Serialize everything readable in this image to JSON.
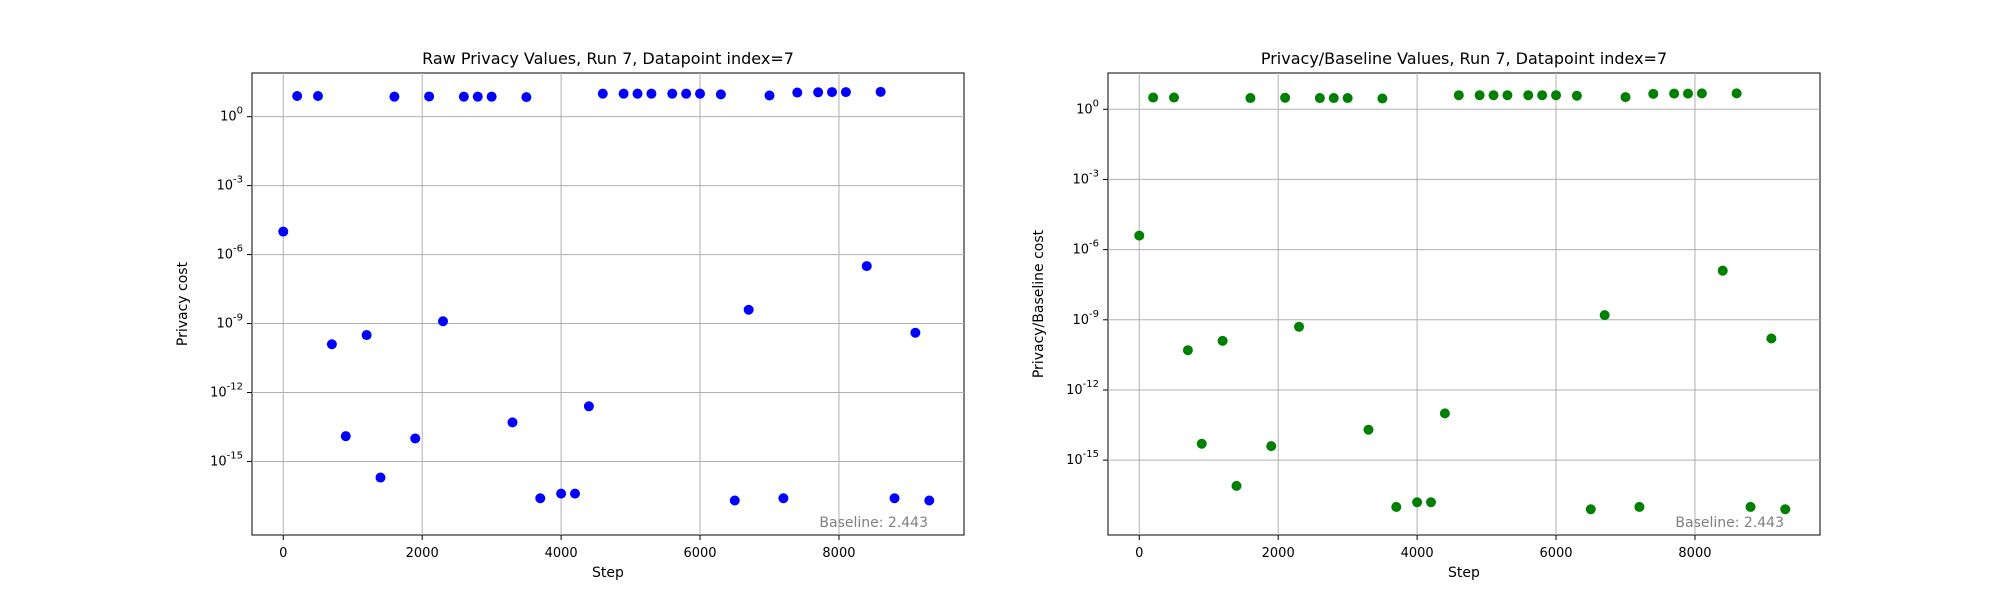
{
  "charts": [
    {
      "id": "raw",
      "color": "#0000ff",
      "chart_data": {
        "type": "scatter",
        "title": "Raw Privacy Values, Run 7, Datapoint index=7",
        "xlabel": "Step",
        "ylabel": "Privacy cost",
        "yscale": "log",
        "xlim": [
          -450,
          9800
        ],
        "ylim_log10": [
          -18.2,
          1.9
        ],
        "xticks": [
          0,
          2000,
          4000,
          6000,
          8000
        ],
        "xtick_labels": [
          "0",
          "2000",
          "4000",
          "6000",
          "8000"
        ],
        "yticks_log10": [
          0,
          -3,
          -6,
          -9,
          -12,
          -15
        ],
        "ytick_labels": [
          "10^0",
          "10^-3",
          "10^-6",
          "10^-9",
          "10^-12",
          "10^-15"
        ],
        "grid": true,
        "annotation": "Baseline: 2.443",
        "x": [
          0,
          200,
          500,
          700,
          900,
          1200,
          1400,
          1600,
          1900,
          2100,
          2300,
          2600,
          2800,
          3000,
          3300,
          3500,
          3700,
          4000,
          4200,
          4400,
          4600,
          4900,
          5100,
          5300,
          5600,
          5800,
          6000,
          6300,
          6500,
          6700,
          7000,
          7200,
          7400,
          7700,
          7900,
          8100,
          8400,
          8600,
          8800,
          9100,
          9300
        ],
        "y_log10": [
          -5.0,
          0.9,
          0.9,
          -9.9,
          -13.9,
          -9.5,
          -15.7,
          0.87,
          -14.0,
          0.88,
          -8.9,
          0.87,
          0.87,
          0.87,
          -13.3,
          0.85,
          -16.6,
          -16.4,
          -16.4,
          -12.6,
          1.0,
          1.0,
          1.0,
          1.0,
          1.0,
          1.0,
          1.0,
          0.97,
          -16.7,
          -8.4,
          0.92,
          -16.6,
          1.05,
          1.06,
          1.07,
          1.07,
          -6.5,
          1.08,
          -16.6,
          -9.4,
          -16.7
        ]
      }
    },
    {
      "id": "ratio",
      "color": "#008000",
      "chart_data": {
        "type": "scatter",
        "title": "Privacy/Baseline Values, Run 7, Datapoint index=7",
        "xlabel": "Step",
        "ylabel": "Privacy/Baseline cost",
        "yscale": "log",
        "xlim": [
          -450,
          9800
        ],
        "ylim_log10": [
          -18.2,
          1.55
        ],
        "xticks": [
          0,
          2000,
          4000,
          6000,
          8000
        ],
        "xtick_labels": [
          "0",
          "2000",
          "4000",
          "6000",
          "8000"
        ],
        "yticks_log10": [
          0,
          -3,
          -6,
          -9,
          -12,
          -15
        ],
        "ytick_labels": [
          "10^0",
          "10^-3",
          "10^-6",
          "10^-9",
          "10^-12",
          "10^-15"
        ],
        "grid": true,
        "annotation": "Baseline: 2.443",
        "x": [
          0,
          200,
          500,
          700,
          900,
          1200,
          1400,
          1600,
          1900,
          2100,
          2300,
          2600,
          2800,
          3000,
          3300,
          3500,
          3700,
          4000,
          4200,
          4400,
          4600,
          4900,
          5100,
          5300,
          5600,
          5800,
          6000,
          6300,
          6500,
          6700,
          7000,
          7200,
          7400,
          7700,
          7900,
          8100,
          8400,
          8600,
          8800,
          9100,
          9300
        ],
        "y_log10": [
          -5.4,
          0.5,
          0.5,
          -10.3,
          -14.3,
          -9.9,
          -16.1,
          0.48,
          -14.4,
          0.49,
          -9.3,
          0.48,
          0.48,
          0.48,
          -13.7,
          0.46,
          -17.0,
          -16.8,
          -16.8,
          -13.0,
          0.6,
          0.6,
          0.6,
          0.6,
          0.6,
          0.6,
          0.6,
          0.58,
          -17.1,
          -8.8,
          0.52,
          -17.0,
          0.66,
          0.67,
          0.67,
          0.68,
          -6.9,
          0.68,
          -17.0,
          -9.8,
          -17.1
        ]
      }
    }
  ]
}
